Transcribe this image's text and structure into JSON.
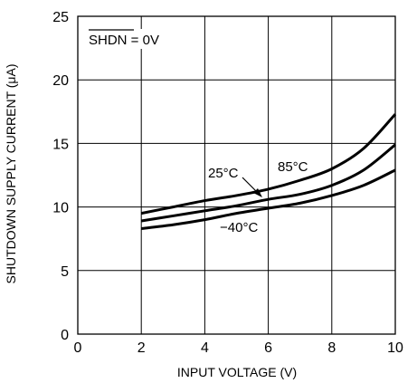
{
  "chart_data": {
    "type": "line",
    "title": "",
    "xlabel": "INPUT VOLTAGE (V)",
    "ylabel": "SHUTDOWN SUPPLY CURRENT (μA)",
    "xlim": [
      0,
      10
    ],
    "ylim": [
      0,
      25
    ],
    "xticks": [
      "0",
      "2",
      "4",
      "6",
      "8",
      "10"
    ],
    "yticks": [
      "0",
      "5",
      "10",
      "15",
      "20",
      "25"
    ],
    "grid": true,
    "condition": {
      "overbar": "SHDN",
      "rest": " = 0V"
    },
    "x": [
      2,
      3,
      4,
      5,
      6,
      7,
      8,
      9,
      10
    ],
    "series": [
      {
        "name": "85°C",
        "values": [
          9.5,
          10.0,
          10.5,
          10.9,
          11.4,
          12.1,
          13.0,
          14.6,
          17.3
        ]
      },
      {
        "name": "25°C",
        "values": [
          8.9,
          9.3,
          9.7,
          10.1,
          10.6,
          11.0,
          11.7,
          12.9,
          14.9
        ]
      },
      {
        "name": "−40°C",
        "values": [
          8.3,
          8.6,
          9.0,
          9.5,
          9.9,
          10.3,
          10.9,
          11.7,
          12.9
        ]
      }
    ]
  }
}
